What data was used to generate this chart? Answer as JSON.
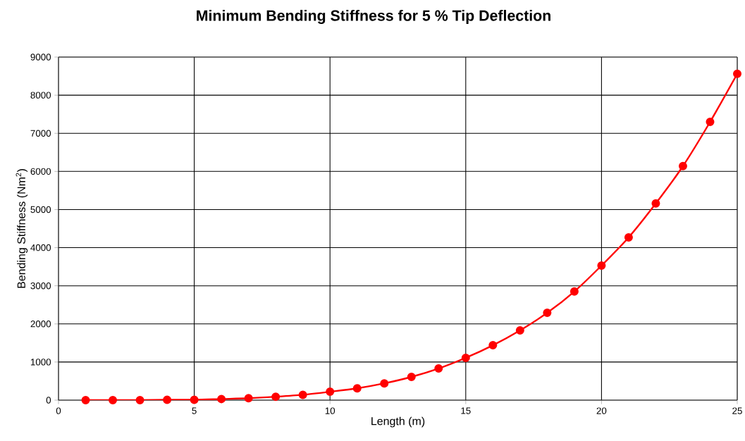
{
  "chart_data": {
    "type": "line",
    "title": "Minimum Bending Stiffness for 5 % Tip Deflection",
    "xlabel": "Length (m)",
    "ylabel": "Bending Stiffness (Nm$^{2}$)",
    "x": [
      1,
      2,
      3,
      4,
      5,
      6,
      7,
      8,
      9,
      10,
      11,
      12,
      13,
      14,
      15,
      16,
      17,
      18,
      19,
      20,
      21,
      22,
      23,
      24,
      25
    ],
    "series": [
      {
        "color": "#ff0000",
        "values": [
          0,
          0,
          0,
          10,
          10,
          30,
          50,
          90,
          140,
          220,
          310,
          440,
          610,
          830,
          1110,
          1440,
          1830,
          2290,
          2850,
          3530,
          4270,
          5160,
          6140,
          7300,
          8560
        ]
      }
    ],
    "xlim": [
      0,
      25
    ],
    "xticks": [
      0,
      5,
      10,
      15,
      20,
      25
    ],
    "ylim": [
      0,
      9000
    ],
    "yticks": [
      0,
      1000,
      2000,
      3000,
      4000,
      5000,
      6000,
      7000,
      8000,
      9000
    ],
    "grid": true,
    "marker": "circle",
    "line_style": "solid"
  }
}
